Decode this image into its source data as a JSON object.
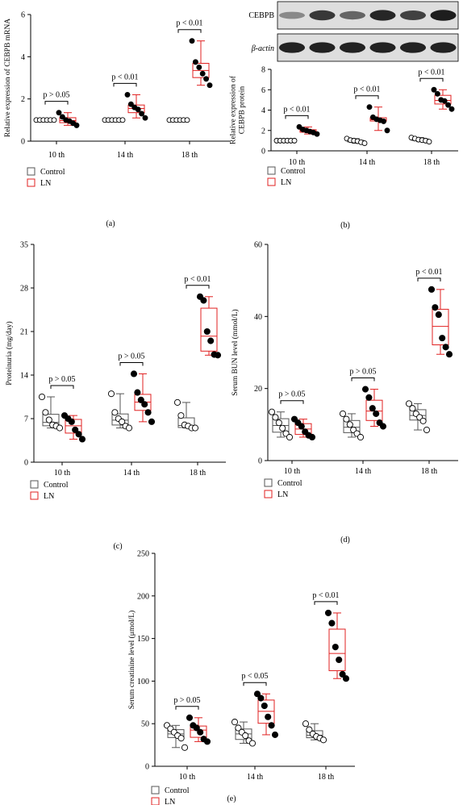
{
  "colors": {
    "control": "#555555",
    "ln": "#e02020",
    "dot": "#000000"
  },
  "legend": {
    "control": "Control",
    "ln": "LN"
  },
  "blot": {
    "cebpb_label": "CEBPB",
    "actin_label": "β-actin",
    "cebpb_intensities": [
      0.35,
      0.8,
      0.55,
      0.9,
      0.75,
      0.95
    ],
    "actin_intensities": [
      0.92,
      0.92,
      0.92,
      0.92,
      0.92,
      0.92
    ]
  },
  "chart_data": [
    {
      "id": "a",
      "type": "box",
      "caption": "(a)",
      "ylabel": "Relative expression of CEBPB mRNA",
      "ylim": [
        0,
        6
      ],
      "yticks": [
        0,
        2,
        4,
        6
      ],
      "categories": [
        "10 th",
        "14 th",
        "18 th"
      ],
      "groups": [
        {
          "control": [
            1,
            1,
            1,
            1,
            1,
            1
          ],
          "ln": [
            1.35,
            1.15,
            1.0,
            0.95,
            0.85,
            0.75
          ],
          "p": "p > 0.05"
        },
        {
          "control": [
            1,
            1,
            1,
            1,
            1,
            1
          ],
          "ln": [
            2.2,
            1.75,
            1.6,
            1.5,
            1.3,
            1.1
          ],
          "p": "p < 0.01"
        },
        {
          "control": [
            1,
            1,
            1,
            1,
            1,
            1
          ],
          "ln": [
            4.75,
            3.75,
            3.5,
            3.2,
            2.95,
            2.65
          ],
          "p": "p < 0.01"
        }
      ]
    },
    {
      "id": "b",
      "type": "box",
      "caption": "(b)",
      "ylabel": "Relative expression of CEBPB protein",
      "ylim": [
        0,
        8
      ],
      "yticks": [
        0,
        2,
        4,
        6,
        8
      ],
      "categories": [
        "10 th",
        "14 th",
        "18 th"
      ],
      "groups": [
        {
          "control": [
            1,
            1,
            1,
            1,
            1,
            1
          ],
          "ln": [
            2.35,
            2.1,
            2.0,
            1.9,
            1.8,
            1.65
          ],
          "p": "p < 0.01"
        },
        {
          "control": [
            1.2,
            1.05,
            1.0,
            0.95,
            0.85,
            0.75
          ],
          "ln": [
            4.3,
            3.3,
            3.1,
            3.0,
            2.9,
            2.0
          ],
          "p": "p < 0.01"
        },
        {
          "control": [
            1.3,
            1.2,
            1.1,
            1.05,
            1.0,
            0.9
          ],
          "ln": [
            6.0,
            5.6,
            5.0,
            4.9,
            4.5,
            4.1
          ],
          "p": "p < 0.01"
        }
      ]
    },
    {
      "id": "c",
      "type": "box",
      "caption": "(c)",
      "ylabel": "Proteinuria (mg/day)",
      "ylim": [
        0,
        35
      ],
      "yticks": [
        0,
        7,
        14,
        21,
        28,
        35
      ],
      "categories": [
        "10 th",
        "14 th",
        "18 th"
      ],
      "groups": [
        {
          "control": [
            10.5,
            8.0,
            6.8,
            6.0,
            5.8,
            5.5
          ],
          "ln": [
            7.5,
            7.0,
            6.5,
            5.2,
            4.5,
            3.7
          ],
          "p": "p > 0.05"
        },
        {
          "control": [
            11.0,
            8.0,
            7.0,
            6.5,
            5.8,
            5.5
          ],
          "ln": [
            14.2,
            11.2,
            10.0,
            9.3,
            8.0,
            6.5
          ],
          "p": "p > 0.05"
        },
        {
          "control": [
            9.6,
            7.5,
            6.0,
            5.8,
            5.5,
            5.5
          ],
          "ln": [
            26.6,
            26.0,
            21.0,
            19.5,
            17.3,
            17.2
          ],
          "p": "p < 0.01"
        }
      ]
    },
    {
      "id": "d",
      "type": "box",
      "caption": "(d)",
      "ylabel": "Serum BUN level (mmol/L)",
      "ylim": [
        0,
        60
      ],
      "yticks": [
        0,
        20,
        40,
        60
      ],
      "categories": [
        "10 th",
        "14 th",
        "18 th"
      ],
      "groups": [
        {
          "control": [
            13.5,
            12.0,
            10.5,
            9.0,
            7.5,
            6.5
          ],
          "ln": [
            11.5,
            10.5,
            9.5,
            8.0,
            7.0,
            6.5
          ],
          "p": "p > 0.05"
        },
        {
          "control": [
            13.0,
            11.5,
            10.0,
            8.5,
            7.5,
            6.5
          ],
          "ln": [
            19.8,
            17.5,
            14.5,
            13.0,
            10.5,
            9.5
          ],
          "p": "p > 0.05"
        },
        {
          "control": [
            15.8,
            14.5,
            13.0,
            12.0,
            11.0,
            8.5
          ],
          "ln": [
            47.5,
            42.5,
            40.5,
            34.0,
            31.5,
            29.5
          ],
          "p": "p < 0.01"
        }
      ]
    },
    {
      "id": "e",
      "type": "box",
      "caption": "(e)",
      "ylabel": "Serum creatinine level (μmol/L)",
      "ylim": [
        0,
        250
      ],
      "yticks": [
        0,
        50,
        100,
        150,
        200,
        250
      ],
      "categories": [
        "10 th",
        "14 th",
        "18 th"
      ],
      "groups": [
        {
          "control": [
            48,
            44,
            40,
            36,
            33,
            22
          ],
          "ln": [
            57,
            48,
            45,
            40,
            32,
            29
          ],
          "p": "p > 0.05"
        },
        {
          "control": [
            52,
            45,
            40,
            36,
            30,
            27
          ],
          "ln": [
            85,
            80,
            71,
            58,
            48,
            37
          ],
          "p": "p < 0.05"
        },
        {
          "control": [
            50,
            43,
            38,
            35,
            33,
            31
          ],
          "ln": [
            180,
            168,
            140,
            125,
            108,
            103
          ],
          "p": "p < 0.01"
        }
      ]
    }
  ]
}
